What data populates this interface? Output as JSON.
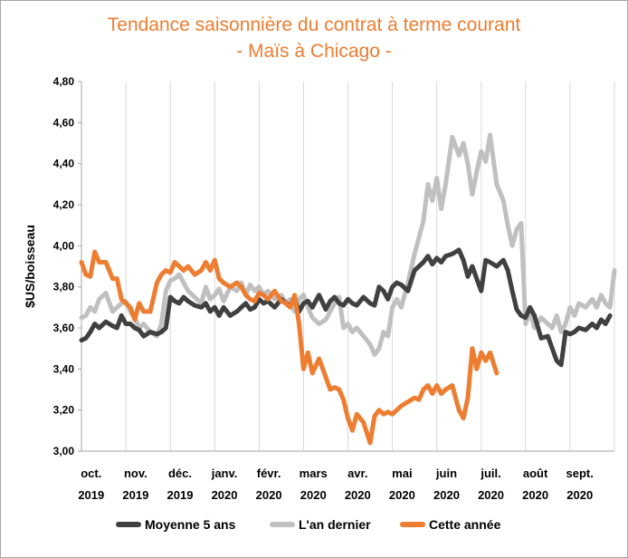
{
  "chart_data": {
    "type": "line",
    "title": "Tendance saisonnière du contrat à terme courant",
    "subtitle": "- Maïs à Chicago -",
    "ylabel": "$US/boisseau",
    "xlabel": "",
    "ylim": [
      3.0,
      4.8
    ],
    "yticks": [
      "4,80",
      "4,60",
      "4,40",
      "4,20",
      "4,00",
      "3,80",
      "3,60",
      "3,40",
      "3,20",
      "3,00"
    ],
    "ytick_values": [
      4.8,
      4.6,
      4.4,
      4.2,
      4.0,
      3.8,
      3.6,
      3.4,
      3.2,
      3.0
    ],
    "x_month_labels": [
      {
        "month": "oct.",
        "year": "2019"
      },
      {
        "month": "nov.",
        "year": "2019"
      },
      {
        "month": "déc.",
        "year": "2019"
      },
      {
        "month": "janv.",
        "year": "2020"
      },
      {
        "month": "févr.",
        "year": "2020"
      },
      {
        "month": "mars",
        "year": "2020"
      },
      {
        "month": "avr.",
        "year": "2020"
      },
      {
        "month": "mai",
        "year": "2020"
      },
      {
        "month": "juin",
        "year": "2020"
      },
      {
        "month": "juil.",
        "year": "2020"
      },
      {
        "month": "août",
        "year": "2020"
      },
      {
        "month": "sept.",
        "year": "2020"
      }
    ],
    "x_range_months": [
      0,
      12
    ],
    "grid": "vertical",
    "legend_position": "bottom",
    "series": [
      {
        "name": "Moyenne 5 ans",
        "color": "#404040",
        "x_months": [
          0.0,
          0.1,
          0.2,
          0.3,
          0.4,
          0.55,
          0.7,
          0.8,
          0.9,
          1.0,
          1.1,
          1.2,
          1.3,
          1.4,
          1.55,
          1.7,
          1.8,
          1.9,
          2.0,
          2.1,
          2.2,
          2.3,
          2.4,
          2.55,
          2.7,
          2.8,
          2.9,
          3.0,
          3.1,
          3.2,
          3.35,
          3.5,
          3.6,
          3.7,
          3.8,
          3.9,
          4.0,
          4.1,
          4.2,
          4.35,
          4.5,
          4.6,
          4.7,
          4.8,
          4.9,
          5.0,
          5.1,
          5.2,
          5.35,
          5.5,
          5.6,
          5.7,
          5.8,
          5.9,
          6.0,
          6.1,
          6.2,
          6.35,
          6.5,
          6.6,
          6.7,
          6.8,
          6.9,
          7.0,
          7.1,
          7.2,
          7.35,
          7.5,
          7.6,
          7.7,
          7.8,
          7.9,
          8.0,
          8.1,
          8.2,
          8.35,
          8.5,
          8.6,
          8.7,
          8.8,
          8.9,
          9.0,
          9.1,
          9.2,
          9.35,
          9.5,
          9.6,
          9.7,
          9.8,
          9.9,
          10.0,
          10.1,
          10.2,
          10.35,
          10.5,
          10.6,
          10.7,
          10.8,
          10.9,
          11.0,
          11.1,
          11.2,
          11.35,
          11.5,
          11.6,
          11.7,
          11.8,
          11.9
        ],
        "values": [
          3.54,
          3.55,
          3.58,
          3.62,
          3.6,
          3.63,
          3.61,
          3.6,
          3.66,
          3.62,
          3.62,
          3.6,
          3.59,
          3.56,
          3.58,
          3.57,
          3.58,
          3.6,
          3.75,
          3.73,
          3.72,
          3.75,
          3.73,
          3.71,
          3.7,
          3.72,
          3.68,
          3.7,
          3.66,
          3.7,
          3.66,
          3.68,
          3.7,
          3.72,
          3.69,
          3.7,
          3.74,
          3.72,
          3.73,
          3.7,
          3.74,
          3.72,
          3.71,
          3.74,
          3.68,
          3.72,
          3.73,
          3.7,
          3.76,
          3.69,
          3.73,
          3.75,
          3.72,
          3.71,
          3.74,
          3.72,
          3.71,
          3.75,
          3.72,
          3.71,
          3.8,
          3.78,
          3.74,
          3.8,
          3.82,
          3.81,
          3.78,
          3.88,
          3.9,
          3.92,
          3.95,
          3.91,
          3.94,
          3.92,
          3.95,
          3.96,
          3.98,
          3.93,
          3.85,
          3.9,
          3.84,
          3.78,
          3.93,
          3.92,
          3.9,
          3.93,
          3.88,
          3.78,
          3.69,
          3.66,
          3.65,
          3.7,
          3.66,
          3.55,
          3.56,
          3.5,
          3.44,
          3.42,
          3.58,
          3.57,
          3.58,
          3.6,
          3.59,
          3.62,
          3.6,
          3.64,
          3.62,
          3.66
        ]
      },
      {
        "name": "L'an dernier",
        "color": "#c0c0c0",
        "x_months": [
          0.0,
          0.1,
          0.2,
          0.3,
          0.4,
          0.55,
          0.7,
          0.8,
          0.9,
          1.0,
          1.1,
          1.2,
          1.3,
          1.4,
          1.55,
          1.7,
          1.8,
          1.9,
          2.0,
          2.1,
          2.2,
          2.3,
          2.4,
          2.55,
          2.7,
          2.8,
          2.9,
          3.0,
          3.1,
          3.2,
          3.35,
          3.5,
          3.6,
          3.7,
          3.8,
          3.9,
          4.0,
          4.1,
          4.2,
          4.35,
          4.5,
          4.6,
          4.7,
          4.8,
          4.9,
          5.0,
          5.1,
          5.2,
          5.35,
          5.5,
          5.6,
          5.7,
          5.8,
          5.9,
          6.0,
          6.1,
          6.2,
          6.35,
          6.5,
          6.6,
          6.7,
          6.8,
          6.9,
          7.0,
          7.1,
          7.2,
          7.35,
          7.5,
          7.6,
          7.7,
          7.8,
          7.9,
          8.0,
          8.1,
          8.2,
          8.35,
          8.5,
          8.6,
          8.7,
          8.8,
          8.9,
          9.0,
          9.1,
          9.2,
          9.35,
          9.5,
          9.6,
          9.7,
          9.8,
          9.9,
          10.0,
          10.1,
          10.2,
          10.35,
          10.5,
          10.6,
          10.7,
          10.8,
          10.9,
          11.0,
          11.1,
          11.2,
          11.35,
          11.5,
          11.6,
          11.7,
          11.8,
          11.9,
          12.0
        ],
        "values": [
          3.65,
          3.66,
          3.7,
          3.68,
          3.74,
          3.77,
          3.68,
          3.7,
          3.72,
          3.73,
          3.68,
          3.65,
          3.6,
          3.62,
          3.58,
          3.56,
          3.62,
          3.78,
          3.83,
          3.84,
          3.86,
          3.82,
          3.78,
          3.75,
          3.72,
          3.8,
          3.74,
          3.76,
          3.79,
          3.73,
          3.8,
          3.78,
          3.82,
          3.76,
          3.81,
          3.78,
          3.8,
          3.76,
          3.78,
          3.74,
          3.76,
          3.72,
          3.74,
          3.68,
          3.74,
          3.76,
          3.7,
          3.65,
          3.62,
          3.64,
          3.68,
          3.72,
          3.75,
          3.6,
          3.62,
          3.58,
          3.6,
          3.56,
          3.52,
          3.47,
          3.5,
          3.58,
          3.56,
          3.7,
          3.74,
          3.7,
          3.82,
          3.96,
          4.04,
          4.12,
          4.3,
          4.22,
          4.33,
          4.18,
          4.3,
          4.53,
          4.44,
          4.5,
          4.4,
          4.25,
          4.36,
          4.46,
          4.41,
          4.54,
          4.3,
          4.22,
          4.1,
          4.0,
          4.08,
          4.11,
          3.62,
          3.68,
          3.6,
          3.65,
          3.62,
          3.6,
          3.66,
          3.58,
          3.62,
          3.7,
          3.66,
          3.72,
          3.7,
          3.74,
          3.7,
          3.76,
          3.72,
          3.7,
          3.88
        ]
      },
      {
        "name": "Cette année",
        "color": "#ed7d31",
        "x_months": [
          0.0,
          0.1,
          0.2,
          0.3,
          0.4,
          0.55,
          0.7,
          0.8,
          0.9,
          1.0,
          1.1,
          1.2,
          1.3,
          1.4,
          1.55,
          1.7,
          1.8,
          1.9,
          2.0,
          2.1,
          2.2,
          2.3,
          2.4,
          2.55,
          2.7,
          2.8,
          2.9,
          3.0,
          3.1,
          3.2,
          3.35,
          3.5,
          3.6,
          3.7,
          3.8,
          3.9,
          4.0,
          4.1,
          4.2,
          4.35,
          4.5,
          4.6,
          4.7,
          4.8,
          4.9,
          5.0,
          5.1,
          5.2,
          5.35,
          5.5,
          5.6,
          5.7,
          5.8,
          5.9,
          6.0,
          6.1,
          6.2,
          6.35,
          6.5,
          6.6,
          6.7,
          6.8,
          6.9,
          7.0,
          7.1,
          7.2,
          7.35,
          7.5,
          7.6,
          7.7,
          7.8,
          7.9,
          8.0,
          8.1,
          8.2,
          8.35,
          8.5,
          8.6,
          8.7,
          8.8,
          8.9,
          9.0,
          9.1,
          9.2,
          9.35
        ],
        "values": [
          3.92,
          3.86,
          3.85,
          3.97,
          3.92,
          3.92,
          3.84,
          3.84,
          3.74,
          3.72,
          3.7,
          3.64,
          3.72,
          3.68,
          3.68,
          3.82,
          3.86,
          3.88,
          3.87,
          3.92,
          3.9,
          3.88,
          3.9,
          3.86,
          3.88,
          3.92,
          3.88,
          3.93,
          3.84,
          3.82,
          3.8,
          3.82,
          3.8,
          3.76,
          3.74,
          3.73,
          3.77,
          3.76,
          3.74,
          3.78,
          3.73,
          3.72,
          3.7,
          3.76,
          3.62,
          3.4,
          3.48,
          3.38,
          3.45,
          3.36,
          3.3,
          3.31,
          3.3,
          3.25,
          3.16,
          3.1,
          3.18,
          3.14,
          3.04,
          3.17,
          3.2,
          3.18,
          3.19,
          3.18,
          3.2,
          3.22,
          3.24,
          3.26,
          3.25,
          3.3,
          3.32,
          3.28,
          3.32,
          3.28,
          3.3,
          3.32,
          3.2,
          3.16,
          3.26,
          3.5,
          3.4,
          3.48,
          3.44,
          3.48,
          3.38
        ]
      }
    ]
  }
}
